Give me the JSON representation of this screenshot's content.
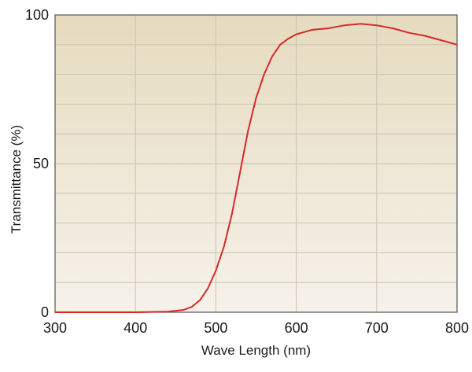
{
  "chart_data": {
    "type": "line",
    "title": "",
    "xlabel": "Wave Length (nm)",
    "ylabel": "Transmittance (%)",
    "xlim": [
      300,
      800
    ],
    "ylim": [
      0,
      100
    ],
    "x_ticks": [
      300,
      400,
      500,
      600,
      700,
      800
    ],
    "y_ticks": [
      0,
      50,
      100
    ],
    "x_tick_labels": [
      "300",
      "400",
      "500",
      "600",
      "700",
      "800"
    ],
    "y_tick_labels": [
      "0",
      "50",
      "100"
    ],
    "grid": true,
    "grid_x_step": 100,
    "grid_y_step": 10,
    "legend": "none",
    "colors": {
      "line": "#d42a2a",
      "plot_bg_top": "#e6dbbf",
      "plot_bg_bottom": "#f6f2ea",
      "grid": "#c9c2b2",
      "frame": "#555555"
    },
    "series": [
      {
        "x": [
          300,
          400,
          440,
          460,
          470,
          480,
          490,
          500,
          510,
          520,
          530,
          540,
          550,
          560,
          570,
          580,
          590,
          600,
          620,
          640,
          660,
          680,
          700,
          720,
          740,
          760,
          780,
          800
        ],
        "y": [
          0,
          0,
          0.2,
          0.8,
          1.8,
          4,
          8,
          14,
          22,
          33,
          47,
          61,
          72,
          80,
          86,
          90,
          92,
          93.5,
          95,
          95.5,
          96.5,
          97,
          96.5,
          95.5,
          94,
          93,
          91.5,
          90
        ]
      }
    ]
  }
}
